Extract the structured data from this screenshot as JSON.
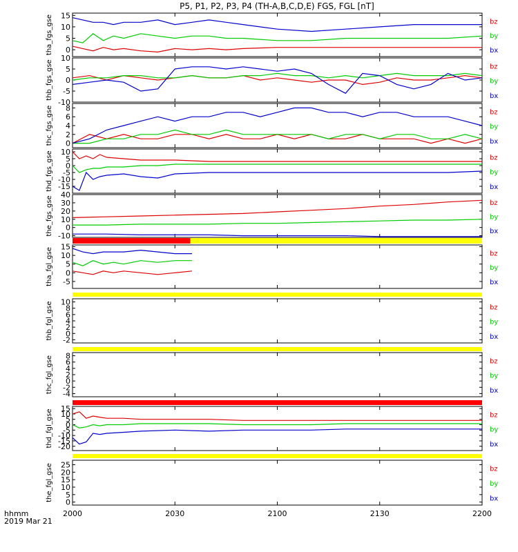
{
  "title": "P5, P1, P2, P3, P4 (TH-A,B,C,D,E) FGS, FGL [nT]",
  "time_axis": {
    "label_line1": "hhmm",
    "label_line2": "2019 Mar 21",
    "ticks": [
      "2000",
      "2030",
      "2100",
      "2130",
      "2200"
    ]
  },
  "legend_colors": {
    "bz": "#dd0000",
    "by": "#00cc00",
    "bx": "#0000cc"
  },
  "chart_data": [
    {
      "type": "line",
      "ylabel": "tha_fgs_gse",
      "ylim": [
        -3,
        16
      ],
      "yticks": [
        0,
        5,
        10,
        15
      ],
      "tick_labels": [
        "0",
        "5",
        "10",
        "15"
      ],
      "x_minutes": [
        0,
        3,
        6,
        9,
        12,
        15,
        20,
        25,
        30,
        35,
        40,
        45,
        50,
        60,
        70,
        80,
        90,
        100,
        110,
        120
      ],
      "series": [
        {
          "name": "bz",
          "values": [
            1.5,
            0.5,
            -0.5,
            1,
            0,
            0.5,
            -0.5,
            -1,
            0.5,
            0,
            0.5,
            0,
            0.5,
            1,
            1,
            1,
            1,
            1,
            1,
            1
          ]
        },
        {
          "name": "by",
          "values": [
            4,
            3,
            7,
            4,
            6,
            5,
            7,
            6,
            5,
            6,
            6,
            5,
            5,
            4,
            4,
            5,
            5,
            5,
            5,
            6
          ]
        },
        {
          "name": "bx",
          "values": [
            14,
            13,
            12,
            12,
            11,
            12,
            12,
            13,
            11,
            12,
            13,
            12,
            11,
            9,
            8,
            9,
            10,
            11,
            11,
            11
          ]
        }
      ]
    },
    {
      "type": "line",
      "ylabel": "thb_fgs_gse",
      "ylim": [
        -10,
        10
      ],
      "yticks": [
        -10,
        -5,
        0,
        5,
        10
      ],
      "tick_labels": [
        "-10",
        "-5",
        "0",
        "5",
        "10"
      ],
      "x_minutes": [
        0,
        5,
        10,
        15,
        20,
        25,
        30,
        35,
        40,
        45,
        50,
        55,
        60,
        65,
        70,
        75,
        80,
        85,
        90,
        95,
        100,
        105,
        110,
        115,
        120
      ],
      "series": [
        {
          "name": "bz",
          "values": [
            1,
            2,
            0,
            2,
            1,
            0,
            1,
            2,
            1,
            1,
            2,
            0,
            1,
            0,
            -1,
            0,
            0,
            -2,
            -1,
            1,
            0,
            0,
            1,
            2,
            1
          ]
        },
        {
          "name": "by",
          "values": [
            0,
            1,
            1,
            2,
            2,
            1,
            1,
            2,
            1,
            1,
            2,
            2,
            3,
            2,
            2,
            1,
            2,
            1,
            2,
            3,
            2,
            2,
            2,
            3,
            2
          ]
        },
        {
          "name": "bx",
          "values": [
            -2,
            -1,
            0,
            -1,
            -5,
            -4,
            5,
            6,
            6,
            5,
            6,
            5,
            4,
            5,
            3,
            -2,
            -6,
            3,
            2,
            -2,
            -4,
            -2,
            3,
            0,
            1
          ]
        }
      ]
    },
    {
      "type": "line",
      "ylabel": "thc_fgs_gse",
      "ylim": [
        -1,
        9
      ],
      "yticks": [
        0,
        2,
        4,
        6,
        8
      ],
      "tick_labels": [
        "0",
        "2",
        "4",
        "6",
        "8"
      ],
      "x_minutes": [
        0,
        5,
        10,
        15,
        20,
        25,
        30,
        35,
        40,
        45,
        50,
        55,
        60,
        65,
        70,
        75,
        80,
        85,
        90,
        95,
        100,
        105,
        110,
        115,
        120
      ],
      "series": [
        {
          "name": "bz",
          "values": [
            0,
            2,
            1,
            2,
            1,
            1,
            2,
            2,
            1,
            2,
            1,
            1,
            2,
            1,
            2,
            1,
            1,
            2,
            1,
            1,
            1,
            0,
            1,
            0,
            1
          ]
        },
        {
          "name": "by",
          "values": [
            0,
            0,
            1,
            1,
            2,
            2,
            3,
            2,
            2,
            3,
            2,
            2,
            2,
            2,
            2,
            1,
            2,
            2,
            1,
            2,
            2,
            1,
            1,
            2,
            1
          ]
        },
        {
          "name": "bx",
          "values": [
            0,
            1,
            3,
            4,
            5,
            6,
            5,
            6,
            6,
            7,
            7,
            6,
            7,
            8,
            8,
            7,
            7,
            6,
            7,
            7,
            6,
            6,
            6,
            5,
            4
          ]
        }
      ]
    },
    {
      "type": "line",
      "ylabel": "thd_fgs_gse",
      "ylim": [
        -20,
        12
      ],
      "yticks": [
        -15,
        -10,
        -5,
        0,
        5,
        10
      ],
      "tick_labels": [
        "-15",
        "-10",
        "-5",
        "0",
        "5",
        "10"
      ],
      "x_minutes": [
        0,
        2,
        4,
        6,
        8,
        10,
        15,
        20,
        25,
        30,
        40,
        50,
        60,
        70,
        80,
        90,
        100,
        110,
        120
      ],
      "series": [
        {
          "name": "bz",
          "values": [
            10,
            5,
            7,
            5,
            8,
            6,
            5,
            4,
            4,
            4,
            3,
            3,
            3,
            3,
            3,
            3,
            3,
            3,
            3
          ]
        },
        {
          "name": "by",
          "values": [
            0,
            -5,
            -3,
            -2,
            -2,
            -1,
            -1,
            0,
            0,
            1,
            1,
            1,
            1,
            1,
            1,
            1,
            1,
            1,
            1
          ]
        },
        {
          "name": "bx",
          "values": [
            -15,
            -18,
            -5,
            -10,
            -8,
            -7,
            -6,
            -8,
            -9,
            -6,
            -5,
            -5,
            -5,
            -5,
            -5,
            -5,
            -5,
            -5,
            -4
          ]
        }
      ]
    },
    {
      "type": "line",
      "ylabel": "the_fgs_gse",
      "ylim": [
        -12,
        40
      ],
      "yticks": [
        -10,
        0,
        10,
        20,
        30,
        40
      ],
      "tick_labels": [
        "-10",
        "0",
        "10",
        "20",
        "30",
        "40"
      ],
      "x_minutes": [
        0,
        10,
        20,
        30,
        40,
        50,
        60,
        70,
        80,
        90,
        100,
        110,
        120
      ],
      "series": [
        {
          "name": "bz",
          "values": [
            12,
            13,
            14,
            15,
            16,
            17,
            19,
            21,
            23,
            26,
            28,
            31,
            33
          ]
        },
        {
          "name": "by",
          "values": [
            3,
            3,
            4,
            4,
            4,
            5,
            5,
            6,
            7,
            8,
            9,
            9,
            10
          ]
        },
        {
          "name": "bx",
          "values": [
            -8,
            -8,
            -9,
            -9,
            -9,
            -10,
            -10,
            -10,
            -10,
            -11,
            -11,
            -11,
            -11
          ]
        }
      ]
    },
    {
      "type": "line",
      "ylabel": "tha_fgl_gse",
      "ylim": [
        -9,
        16
      ],
      "yticks": [
        -5,
        0,
        5,
        10,
        15
      ],
      "tick_labels": [
        "-5",
        "0",
        "5",
        "10",
        "15"
      ],
      "x_minutes": [
        0,
        3,
        6,
        9,
        12,
        15,
        20,
        25,
        30,
        35
      ],
      "series": [
        {
          "name": "bz",
          "values": [
            1,
            0,
            -1,
            1,
            0,
            1,
            0,
            -1,
            0,
            1
          ]
        },
        {
          "name": "by",
          "values": [
            6,
            4,
            7,
            5,
            6,
            5,
            7,
            6,
            7,
            7
          ]
        },
        {
          "name": "bx",
          "values": [
            14,
            12,
            11,
            12,
            12,
            12,
            13,
            12,
            11,
            11
          ]
        }
      ]
    },
    {
      "type": "line",
      "ylabel": "thb_fgl_gse",
      "ylim": [
        -3,
        11
      ],
      "yticks": [
        -2,
        0,
        2,
        4,
        6,
        8,
        10
      ],
      "tick_labels": [
        "-2",
        "0",
        "2",
        "4",
        "6",
        "8",
        "10"
      ],
      "x_minutes": [],
      "series": []
    },
    {
      "type": "line",
      "ylabel": "thc_fgl_gse",
      "ylim": [
        -5,
        9
      ],
      "yticks": [
        -4,
        -2,
        0,
        2,
        4,
        6,
        8
      ],
      "tick_labels": [
        "-4",
        "-2",
        "0",
        "2",
        "4",
        "6",
        "8"
      ],
      "x_minutes": [],
      "series": []
    },
    {
      "type": "line",
      "ylabel": "thd_fgl_gse",
      "ylim": [
        -24,
        17
      ],
      "yticks": [
        -20,
        -15,
        -10,
        -5,
        0,
        5,
        10,
        15
      ],
      "tick_labels": [
        "-20",
        "-15",
        "-10",
        "-5",
        "0",
        "5",
        "10",
        "15"
      ],
      "x_minutes": [
        0,
        2,
        4,
        6,
        8,
        10,
        15,
        20,
        30,
        40,
        50,
        60,
        70,
        80,
        90,
        100,
        110,
        120
      ],
      "series": [
        {
          "name": "bz",
          "values": [
            10,
            12,
            6,
            8,
            7,
            6,
            6,
            5,
            5,
            5,
            4,
            4,
            4,
            4,
            4,
            4,
            4,
            4
          ]
        },
        {
          "name": "by",
          "values": [
            0,
            -3,
            -2,
            0,
            -1,
            0,
            0,
            1,
            1,
            1,
            0,
            0,
            0,
            1,
            1,
            1,
            1,
            1
          ]
        },
        {
          "name": "bx",
          "values": [
            -12,
            -18,
            -16,
            -8,
            -9,
            -8,
            -7,
            -6,
            -5,
            -6,
            -5,
            -5,
            -5,
            -4,
            -4,
            -4,
            -4,
            -4
          ]
        }
      ]
    },
    {
      "type": "line",
      "ylabel": "the_fgl_gse",
      "ylim": [
        -2,
        28
      ],
      "yticks": [
        0,
        5,
        10,
        15,
        20,
        25
      ],
      "tick_labels": [
        "0",
        "5",
        "10",
        "15",
        "20",
        "25"
      ],
      "x_minutes": [],
      "series": []
    }
  ],
  "bars": [
    {
      "segments": [
        {
          "color": "#ff0000",
          "x0": 0,
          "x1": 34.5
        },
        {
          "color": "#ffff00",
          "x0": 34.5,
          "x1": 120
        }
      ]
    },
    {
      "segments": [
        {
          "color": "#ffff00",
          "x0": 0,
          "x1": 120
        }
      ]
    },
    {
      "segments": [
        {
          "color": "#ffff00",
          "x0": 0,
          "x1": 120
        }
      ]
    },
    {
      "segments": [
        {
          "color": "#ff0000",
          "x0": 0,
          "x1": 120
        }
      ]
    },
    {
      "segments": [
        {
          "color": "#ffff00",
          "x0": 0,
          "x1": 120
        }
      ]
    }
  ]
}
